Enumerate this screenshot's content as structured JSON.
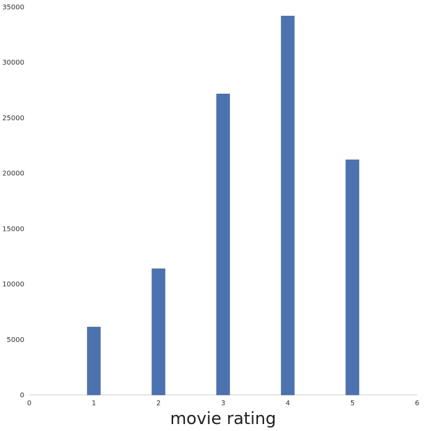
{
  "chart_data": {
    "type": "bar",
    "title": "",
    "xlabel": "movie rating",
    "ylabel": "",
    "xlim": [
      0,
      6
    ],
    "ylim": [
      0,
      35000
    ],
    "xticks": [
      0,
      1,
      2,
      3,
      4,
      5,
      6
    ],
    "yticks": [
      0,
      5000,
      10000,
      15000,
      20000,
      25000,
      30000,
      35000
    ],
    "bar_width": 0.2,
    "grid": false,
    "legend": "none",
    "color": "#4c72b0",
    "categories": [
      1,
      2,
      3,
      4,
      5
    ],
    "values": [
      6110,
      11370,
      27145,
      34174,
      21201
    ]
  }
}
